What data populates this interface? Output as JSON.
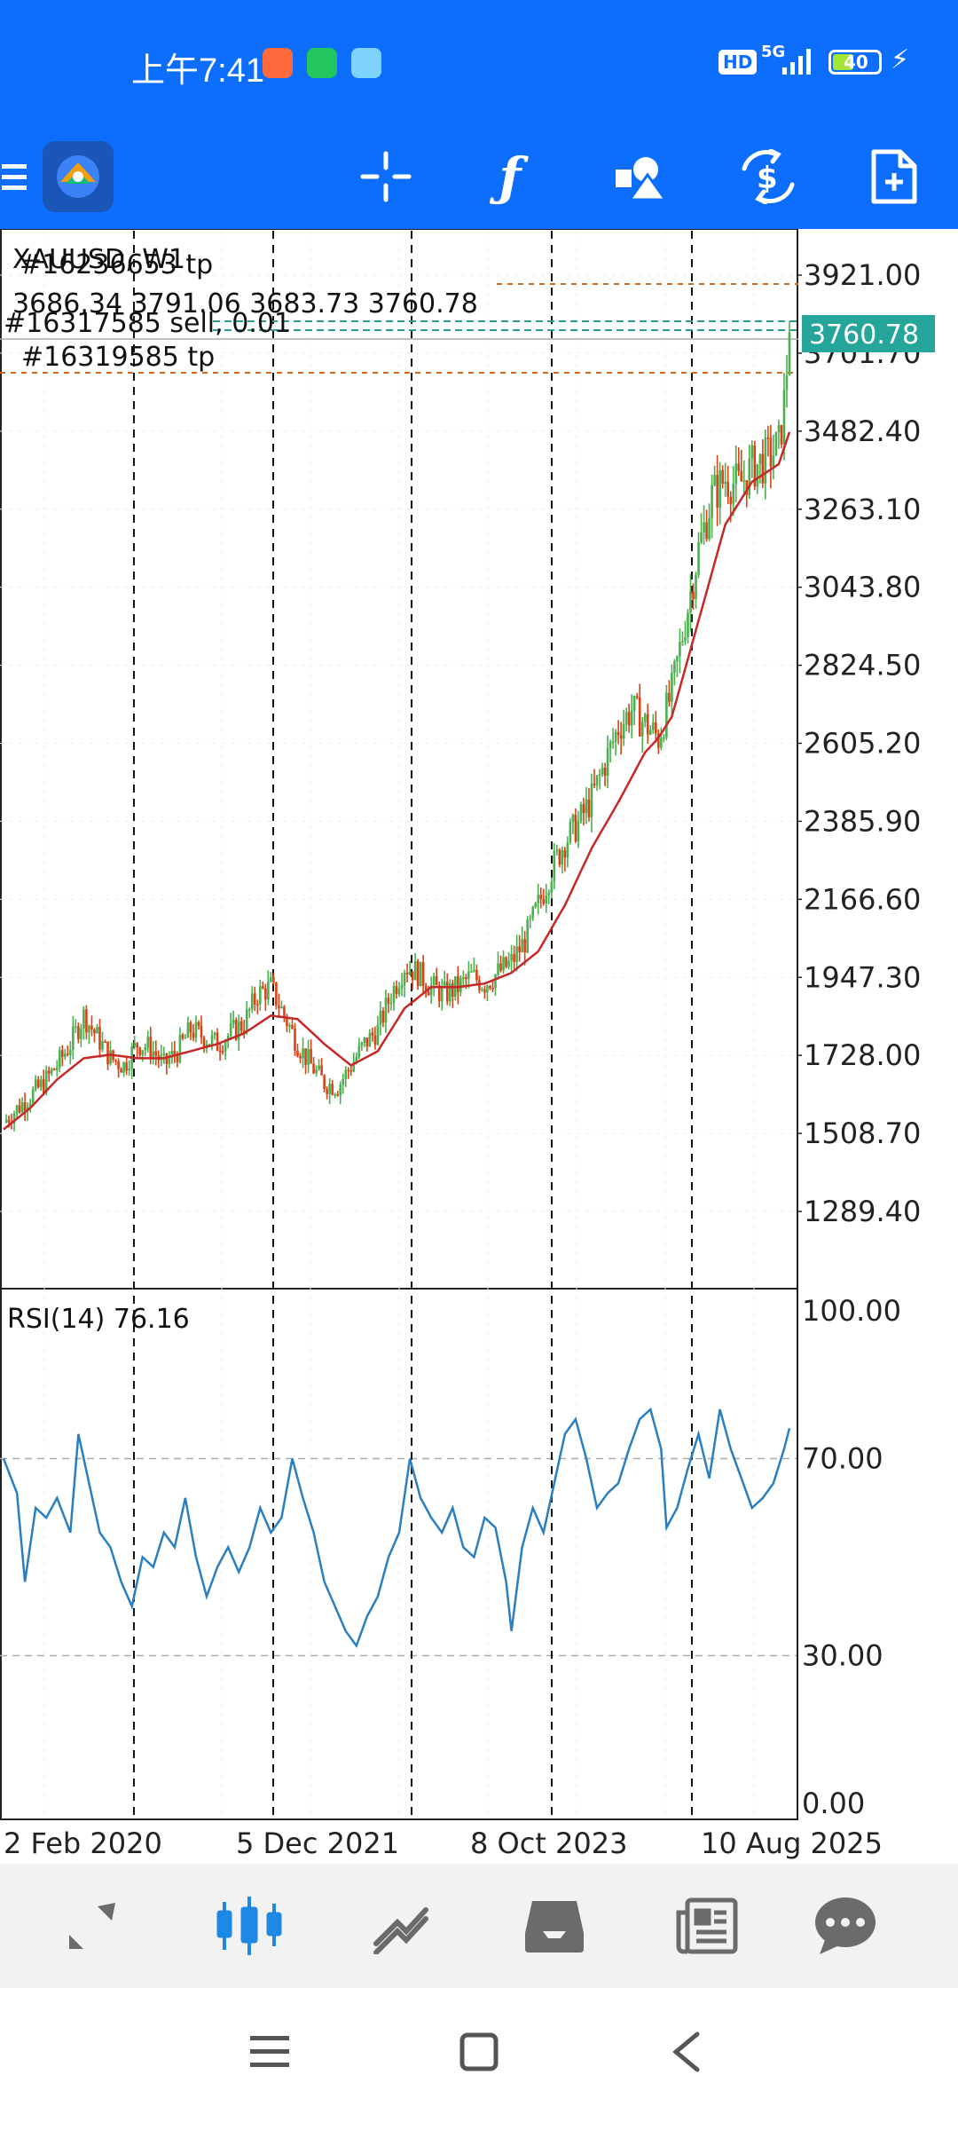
{
  "status": {
    "time": "上午7:41",
    "hd": "HD",
    "network": "5G",
    "battery": "40"
  },
  "toolbar": {
    "icons": [
      "menu-icon",
      "app-logo-icon",
      "crosshair-icon",
      "function-icon",
      "objects-icon",
      "trade-icon",
      "new-order-icon"
    ]
  },
  "chart": {
    "symbol_overlay": "XAUUSD, W1",
    "order_label_top": "#16236653 tp",
    "ohlc": "3686.34 3791.06 3683.73 3760.78",
    "order_label_sell": "#16317585 sell, 0.01",
    "order_label_tp": "#16319585 tp",
    "current_price": "3760.78",
    "price_axis": [
      "3921.00",
      "3701.70",
      "3482.40",
      "3263.10",
      "3043.80",
      "2824.50",
      "2605.20",
      "2385.90",
      "2166.60",
      "1947.30",
      "1728.00",
      "1508.70",
      "1289.40"
    ],
    "rsi_label": "RSI(14) 76.16",
    "rsi_axis": [
      "100.00",
      "70.00",
      "30.00",
      "0.00"
    ],
    "date_axis": [
      "2 Feb 2020",
      "5 Dec 2021",
      "8 Oct 2023",
      "10 Aug 2025"
    ],
    "colors": {
      "bull": "#4caf50",
      "bear": "#d84315",
      "ma": "#c62828",
      "rsi": "#2a7fc0",
      "price_tag": "#26a69a",
      "accent": "#0d6efd"
    }
  },
  "chart_data": {
    "type": "candlestick",
    "symbol": "XAUUSD",
    "timeframe": "W1",
    "ylim": [
      1180,
      4000
    ],
    "last": {
      "open": 3686.34,
      "high": 3791.06,
      "low": 3683.73,
      "close": 3760.78
    },
    "close_path": [
      [
        0,
        1540
      ],
      [
        8,
        1600
      ],
      [
        15,
        1650
      ],
      [
        20,
        1700
      ],
      [
        25,
        1760
      ],
      [
        30,
        1840
      ],
      [
        35,
        1780
      ],
      [
        40,
        1720
      ],
      [
        45,
        1700
      ],
      [
        50,
        1760
      ],
      [
        55,
        1750
      ],
      [
        60,
        1700
      ],
      [
        65,
        1740
      ],
      [
        70,
        1800
      ],
      [
        75,
        1780
      ],
      [
        80,
        1760
      ],
      [
        85,
        1790
      ],
      [
        90,
        1820
      ],
      [
        95,
        1900
      ],
      [
        100,
        1920
      ],
      [
        105,
        1840
      ],
      [
        110,
        1760
      ],
      [
        115,
        1700
      ],
      [
        120,
        1650
      ],
      [
        125,
        1640
      ],
      [
        130,
        1700
      ],
      [
        135,
        1760
      ],
      [
        140,
        1800
      ],
      [
        145,
        1900
      ],
      [
        150,
        1980
      ],
      [
        155,
        1960
      ],
      [
        160,
        1920
      ],
      [
        165,
        1900
      ],
      [
        170,
        1920
      ],
      [
        175,
        1950
      ],
      [
        180,
        1930
      ],
      [
        185,
        1960
      ],
      [
        190,
        1990
      ],
      [
        195,
        2050
      ],
      [
        200,
        2150
      ],
      [
        205,
        2250
      ],
      [
        210,
        2330
      ],
      [
        215,
        2380
      ],
      [
        220,
        2450
      ],
      [
        225,
        2550
      ],
      [
        230,
        2650
      ],
      [
        235,
        2700
      ],
      [
        240,
        2660
      ],
      [
        245,
        2620
      ],
      [
        250,
        2750
      ],
      [
        255,
        2950
      ],
      [
        260,
        3150
      ],
      [
        265,
        3300
      ],
      [
        270,
        3350
      ],
      [
        275,
        3330
      ],
      [
        280,
        3380
      ],
      [
        285,
        3400
      ],
      [
        290,
        3440
      ],
      [
        292,
        3560
      ],
      [
        294,
        3760.78
      ]
    ],
    "ma_path": [
      [
        0,
        1520
      ],
      [
        10,
        1580
      ],
      [
        20,
        1660
      ],
      [
        30,
        1720
      ],
      [
        40,
        1730
      ],
      [
        50,
        1720
      ],
      [
        60,
        1720
      ],
      [
        70,
        1740
      ],
      [
        80,
        1760
      ],
      [
        90,
        1790
      ],
      [
        100,
        1840
      ],
      [
        110,
        1830
      ],
      [
        120,
        1760
      ],
      [
        130,
        1700
      ],
      [
        140,
        1740
      ],
      [
        150,
        1860
      ],
      [
        160,
        1920
      ],
      [
        170,
        1920
      ],
      [
        180,
        1930
      ],
      [
        190,
        1960
      ],
      [
        200,
        2020
      ],
      [
        210,
        2150
      ],
      [
        220,
        2310
      ],
      [
        230,
        2440
      ],
      [
        240,
        2580
      ],
      [
        245,
        2620
      ],
      [
        250,
        2680
      ],
      [
        260,
        2950
      ],
      [
        270,
        3220
      ],
      [
        280,
        3340
      ],
      [
        290,
        3390
      ],
      [
        294,
        3480
      ]
    ],
    "rsi_path": [
      [
        0,
        70
      ],
      [
        5,
        63
      ],
      [
        8,
        45
      ],
      [
        12,
        60
      ],
      [
        16,
        58
      ],
      [
        20,
        62
      ],
      [
        25,
        55
      ],
      [
        28,
        75
      ],
      [
        32,
        65
      ],
      [
        36,
        55
      ],
      [
        40,
        52
      ],
      [
        44,
        45
      ],
      [
        48,
        40
      ],
      [
        52,
        50
      ],
      [
        56,
        48
      ],
      [
        60,
        55
      ],
      [
        64,
        52
      ],
      [
        68,
        62
      ],
      [
        72,
        50
      ],
      [
        76,
        42
      ],
      [
        80,
        48
      ],
      [
        84,
        52
      ],
      [
        88,
        47
      ],
      [
        92,
        52
      ],
      [
        96,
        60
      ],
      [
        100,
        55
      ],
      [
        104,
        58
      ],
      [
        108,
        70
      ],
      [
        112,
        62
      ],
      [
        116,
        55
      ],
      [
        120,
        45
      ],
      [
        124,
        40
      ],
      [
        128,
        35
      ],
      [
        132,
        32
      ],
      [
        136,
        38
      ],
      [
        140,
        42
      ],
      [
        144,
        50
      ],
      [
        148,
        55
      ],
      [
        152,
        70
      ],
      [
        156,
        62
      ],
      [
        160,
        58
      ],
      [
        164,
        55
      ],
      [
        168,
        60
      ],
      [
        172,
        52
      ],
      [
        176,
        50
      ],
      [
        180,
        58
      ],
      [
        184,
        56
      ],
      [
        188,
        45
      ],
      [
        190,
        35
      ],
      [
        194,
        52
      ],
      [
        198,
        60
      ],
      [
        202,
        55
      ],
      [
        206,
        65
      ],
      [
        210,
        75
      ],
      [
        214,
        78
      ],
      [
        218,
        70
      ],
      [
        222,
        60
      ],
      [
        226,
        63
      ],
      [
        230,
        65
      ],
      [
        234,
        72
      ],
      [
        238,
        78
      ],
      [
        242,
        80
      ],
      [
        246,
        72
      ],
      [
        248,
        56
      ],
      [
        252,
        60
      ],
      [
        256,
        68
      ],
      [
        260,
        75
      ],
      [
        264,
        66
      ],
      [
        268,
        80
      ],
      [
        272,
        72
      ],
      [
        276,
        66
      ],
      [
        280,
        60
      ],
      [
        284,
        62
      ],
      [
        288,
        65
      ],
      [
        292,
        72
      ],
      [
        294,
        76.16
      ]
    ],
    "date_labels": [
      {
        "label": "2 Feb 2020",
        "index": 25
      },
      {
        "label": "5 Dec 2021",
        "index": 96
      },
      {
        "label": "8 Oct 2023",
        "index": 182
      },
      {
        "label": "10 Aug 2025",
        "index": 281
      }
    ]
  }
}
